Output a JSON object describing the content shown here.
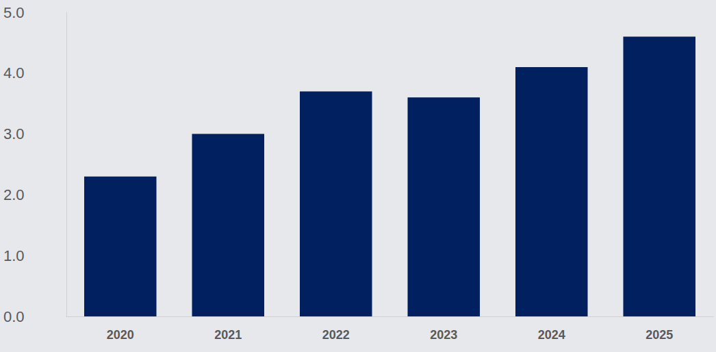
{
  "chart_data": {
    "type": "bar",
    "categories": [
      "2020",
      "2021",
      "2022",
      "2023",
      "2024",
      "2025"
    ],
    "values": [
      2.3,
      3.0,
      3.7,
      3.6,
      4.1,
      4.6
    ],
    "color": "#002060",
    "ylim": [
      0,
      5
    ],
    "yticks": [
      {
        "value": 0,
        "label": "0.0"
      },
      {
        "value": 1,
        "label": "1.0"
      },
      {
        "value": 2,
        "label": "2.0"
      },
      {
        "value": 3,
        "label": "3.0"
      },
      {
        "value": 4,
        "label": "4.0"
      },
      {
        "value": 5,
        "label": "5.0"
      }
    ],
    "grid": false
  }
}
